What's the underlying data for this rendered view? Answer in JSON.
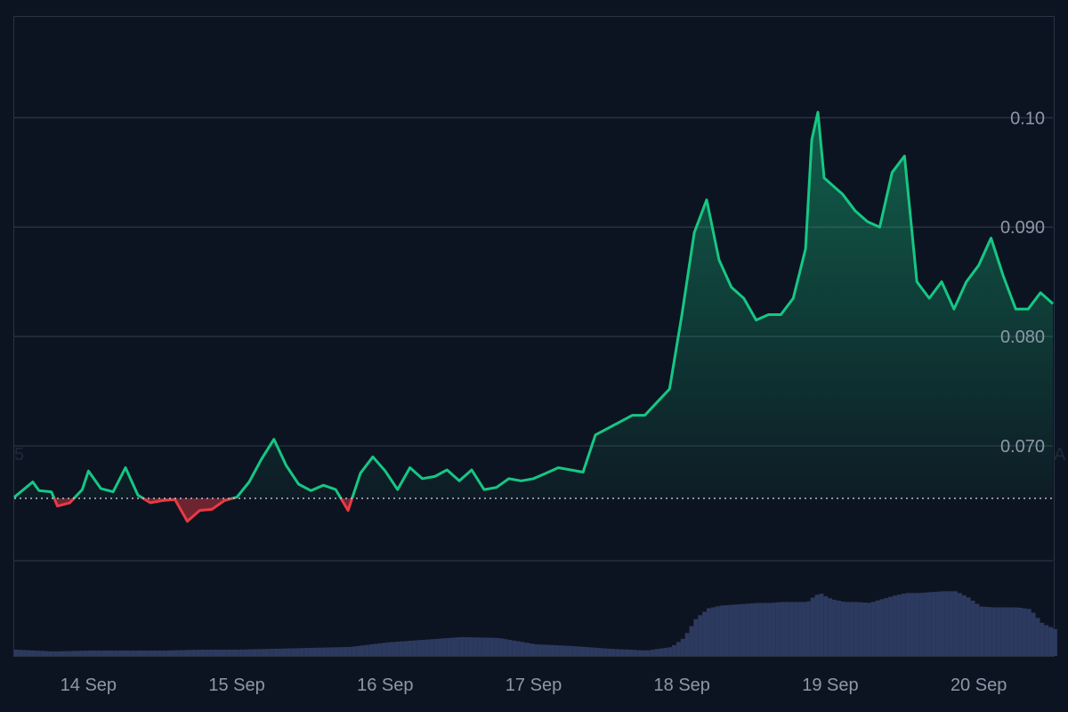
{
  "chart_data": {
    "type": "area",
    "title": "",
    "xlabel": "",
    "ylabel": "",
    "baseline": 0.0652,
    "ylim": [
      0.0595,
      0.1093
    ],
    "y_ticks": [
      "0.070",
      "0.080",
      "0.090",
      "0.10"
    ],
    "x_tick_labels": [
      "14 Sep",
      "15 Sep",
      "16 Sep",
      "17 Sep",
      "18 Sep",
      "19 Sep",
      "20 Sep"
    ],
    "x_range": [
      0,
      168
    ],
    "price": {
      "x": [
        0,
        3,
        4,
        6,
        7,
        9,
        11,
        12,
        14,
        16,
        18,
        20,
        22,
        24,
        26,
        28,
        30,
        32,
        34,
        36,
        38,
        40,
        42,
        44,
        46,
        48,
        50,
        52,
        54,
        56,
        58,
        60,
        62,
        64,
        66,
        68,
        70,
        72,
        74,
        76,
        78,
        80,
        82,
        84,
        86,
        88,
        90,
        92,
        94,
        96,
        98,
        100,
        102,
        104,
        106,
        108,
        110,
        112,
        114,
        116,
        118,
        120,
        122,
        124,
        126,
        128,
        129,
        130,
        131,
        132,
        133,
        134,
        136,
        138,
        140,
        142,
        144,
        146,
        148,
        150,
        152,
        154,
        156,
        158,
        160,
        162,
        164,
        166,
        168
      ],
      "y": [
        0.0653,
        0.0667,
        0.0659,
        0.0658,
        0.0645,
        0.0648,
        0.066,
        0.0677,
        0.0661,
        0.0658,
        0.068,
        0.0655,
        0.0648,
        0.065,
        0.0651,
        0.0631,
        0.0641,
        0.0642,
        0.065,
        0.0653,
        0.0667,
        0.0688,
        0.0706,
        0.0682,
        0.0665,
        0.0659,
        0.0664,
        0.066,
        0.0641,
        0.0675,
        0.069,
        0.0677,
        0.066,
        0.068,
        0.067,
        0.0672,
        0.0678,
        0.0668,
        0.0678,
        0.066,
        0.0662,
        0.067,
        0.0668,
        0.067,
        0.0675,
        0.068,
        0.0678,
        0.0676,
        0.071,
        0.0716,
        0.0722,
        0.0728,
        0.0728,
        0.074,
        0.0752,
        0.082,
        0.0895,
        0.0925,
        0.087,
        0.0845,
        0.0835,
        0.0815,
        0.082,
        0.082,
        0.0835,
        0.088,
        0.098,
        0.1005,
        0.0945,
        0.094,
        0.0935,
        0.093,
        0.0915,
        0.0905,
        0.09,
        0.095,
        0.0965,
        0.085,
        0.0835,
        0.085,
        0.0825,
        0.085,
        0.0865,
        0.089,
        0.0855,
        0.0825,
        0.0825,
        0.084,
        0.083
      ]
    },
    "volume": {
      "x": [
        0,
        6,
        12,
        18,
        24,
        30,
        36,
        42,
        48,
        54,
        60,
        66,
        72,
        78,
        84,
        90,
        96,
        102,
        106,
        108,
        110,
        112,
        114,
        116,
        118,
        120,
        122,
        124,
        126,
        128,
        129,
        130,
        131,
        132,
        134,
        136,
        138,
        140,
        142,
        144,
        146,
        148,
        150,
        152,
        154,
        156,
        158,
        160,
        162,
        164,
        166,
        168
      ],
      "v": [
        0.07,
        0.05,
        0.06,
        0.06,
        0.06,
        0.07,
        0.07,
        0.08,
        0.09,
        0.1,
        0.15,
        0.18,
        0.21,
        0.2,
        0.13,
        0.11,
        0.08,
        0.06,
        0.1,
        0.2,
        0.42,
        0.53,
        0.56,
        0.57,
        0.58,
        0.59,
        0.59,
        0.6,
        0.6,
        0.6,
        0.66,
        0.7,
        0.66,
        0.63,
        0.6,
        0.6,
        0.59,
        0.63,
        0.67,
        0.7,
        0.7,
        0.71,
        0.72,
        0.72,
        0.65,
        0.55,
        0.54,
        0.54,
        0.54,
        0.52,
        0.36,
        0.3
      ]
    },
    "grid": true,
    "colors": {
      "background": "#0d1421",
      "up": "#16c784",
      "down": "#ea3943",
      "grid": "#2a3344",
      "volume": "#2d3a60",
      "baseline": "#c6cad3",
      "tick_label": "#8f97a8"
    },
    "edge_labels": {
      "left": "5",
      "right": "A"
    }
  }
}
